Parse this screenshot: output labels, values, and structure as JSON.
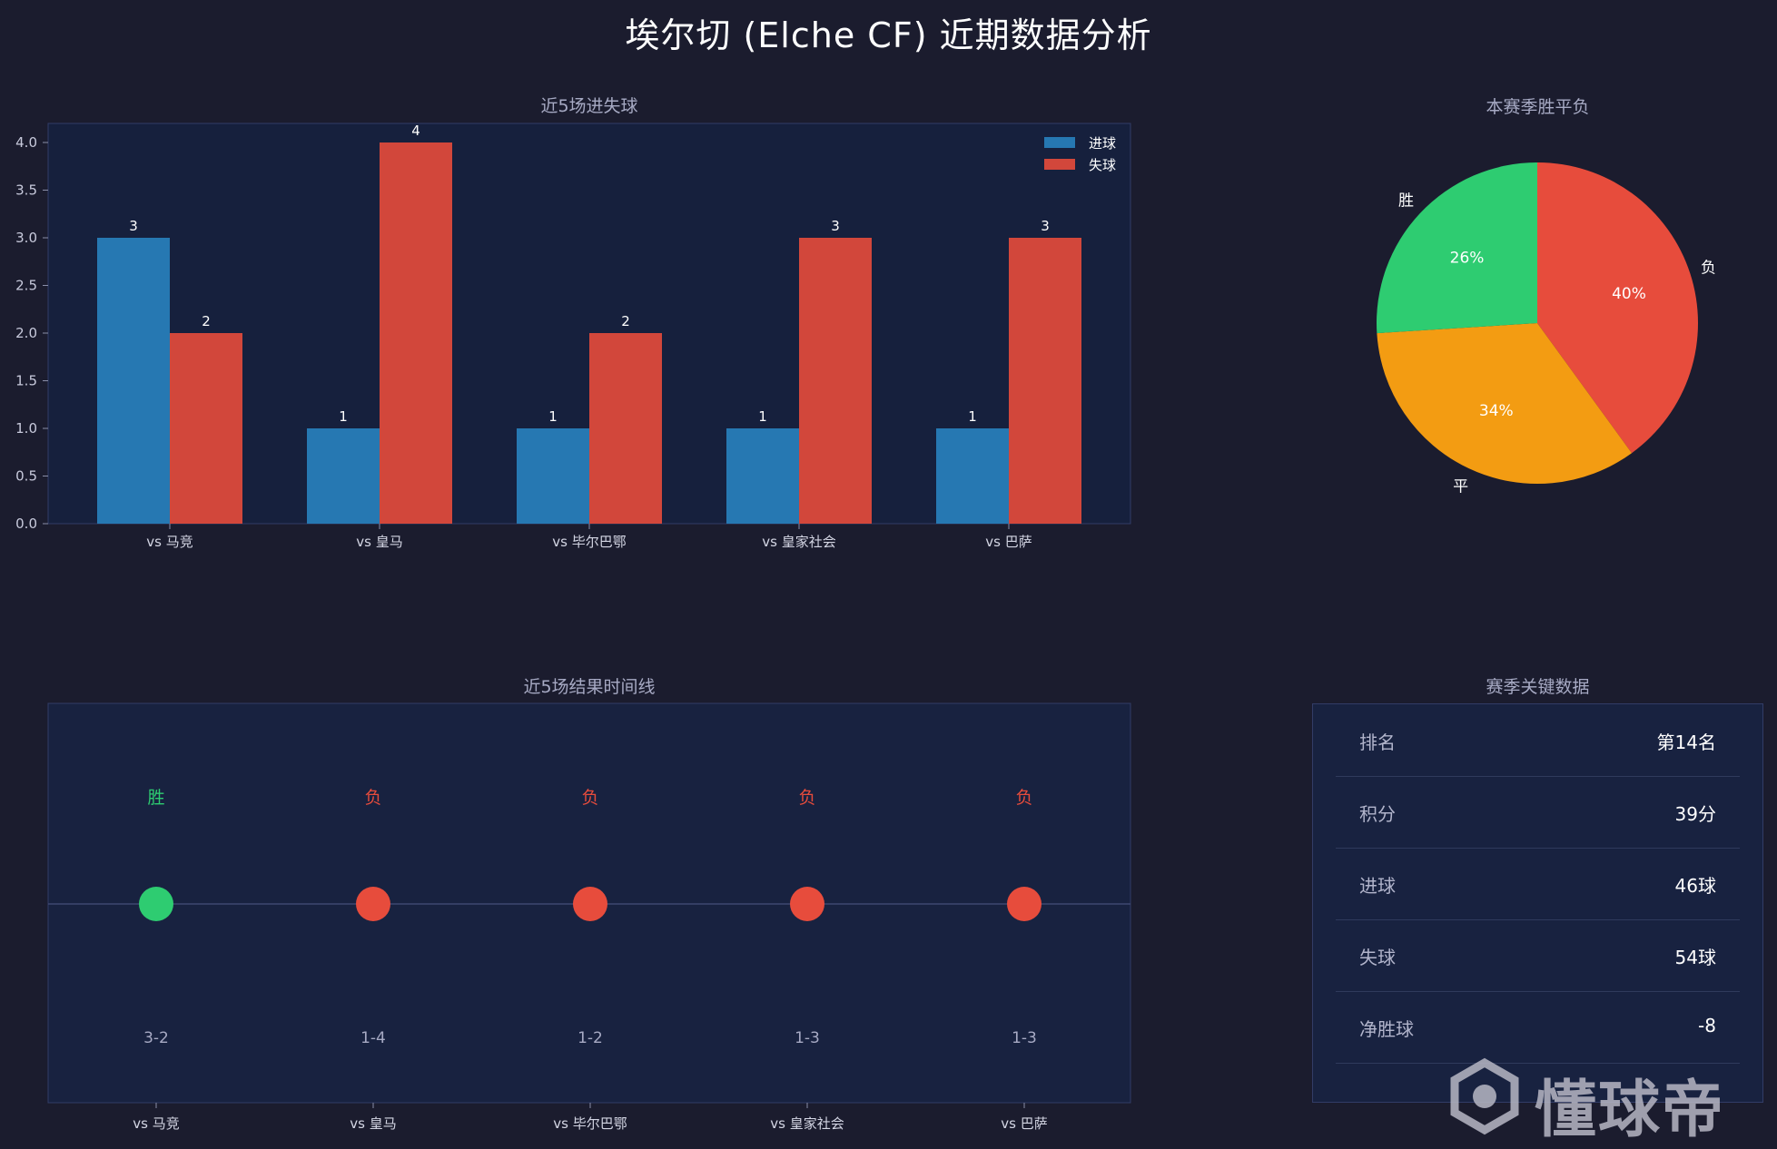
{
  "title": "埃尔切 (Elche CF)  近期数据分析",
  "chart_data": [
    {
      "type": "bar",
      "title": "近5场进失球",
      "categories": [
        "vs 马竞",
        "vs 皇马",
        "vs 毕尔巴鄂",
        "vs 皇家社会",
        "vs 巴萨"
      ],
      "series": [
        {
          "name": "进球",
          "values": [
            3,
            1,
            1,
            1,
            1
          ],
          "color": "#2678b2"
        },
        {
          "name": "失球",
          "values": [
            2,
            4,
            2,
            3,
            3
          ],
          "color": "#d2473b"
        }
      ],
      "ylim": [
        0,
        4.0
      ],
      "yticks": [
        "0.0",
        "0.5",
        "1.0",
        "1.5",
        "2.0",
        "2.5",
        "3.0",
        "3.5",
        "4.0"
      ],
      "legend": "top-right"
    },
    {
      "type": "pie",
      "title": "本赛季胜平负",
      "slices": [
        {
          "label": "胜",
          "pct": 26,
          "pct_label": "26%",
          "color": "#2ecc71"
        },
        {
          "label": "平",
          "pct": 34,
          "pct_label": "34%",
          "color": "#f39c12"
        },
        {
          "label": "负",
          "pct": 40,
          "pct_label": "40%",
          "color": "#e74c3c"
        }
      ]
    },
    {
      "type": "scatter",
      "title": "近5场结果时间线",
      "categories": [
        "vs 马竞",
        "vs 皇马",
        "vs 毕尔巴鄂",
        "vs 皇家社会",
        "vs 巴萨"
      ],
      "results": [
        "胜",
        "负",
        "负",
        "负",
        "负"
      ],
      "scores": [
        "3-2",
        "1-4",
        "1-2",
        "1-3",
        "1-3"
      ],
      "colors": [
        "#2ecc71",
        "#e74c3c",
        "#e74c3c",
        "#e74c3c",
        "#e74c3c"
      ]
    }
  ],
  "stats": {
    "title": "赛季关键数据",
    "rows": [
      {
        "label": "排名",
        "value": "第14名"
      },
      {
        "label": "积分",
        "value": "39分"
      },
      {
        "label": "进球",
        "value": "46球"
      },
      {
        "label": "失球",
        "value": "54球"
      },
      {
        "label": "净胜球",
        "value": "-8"
      }
    ]
  },
  "watermark": {
    "text": "懂球帝"
  }
}
